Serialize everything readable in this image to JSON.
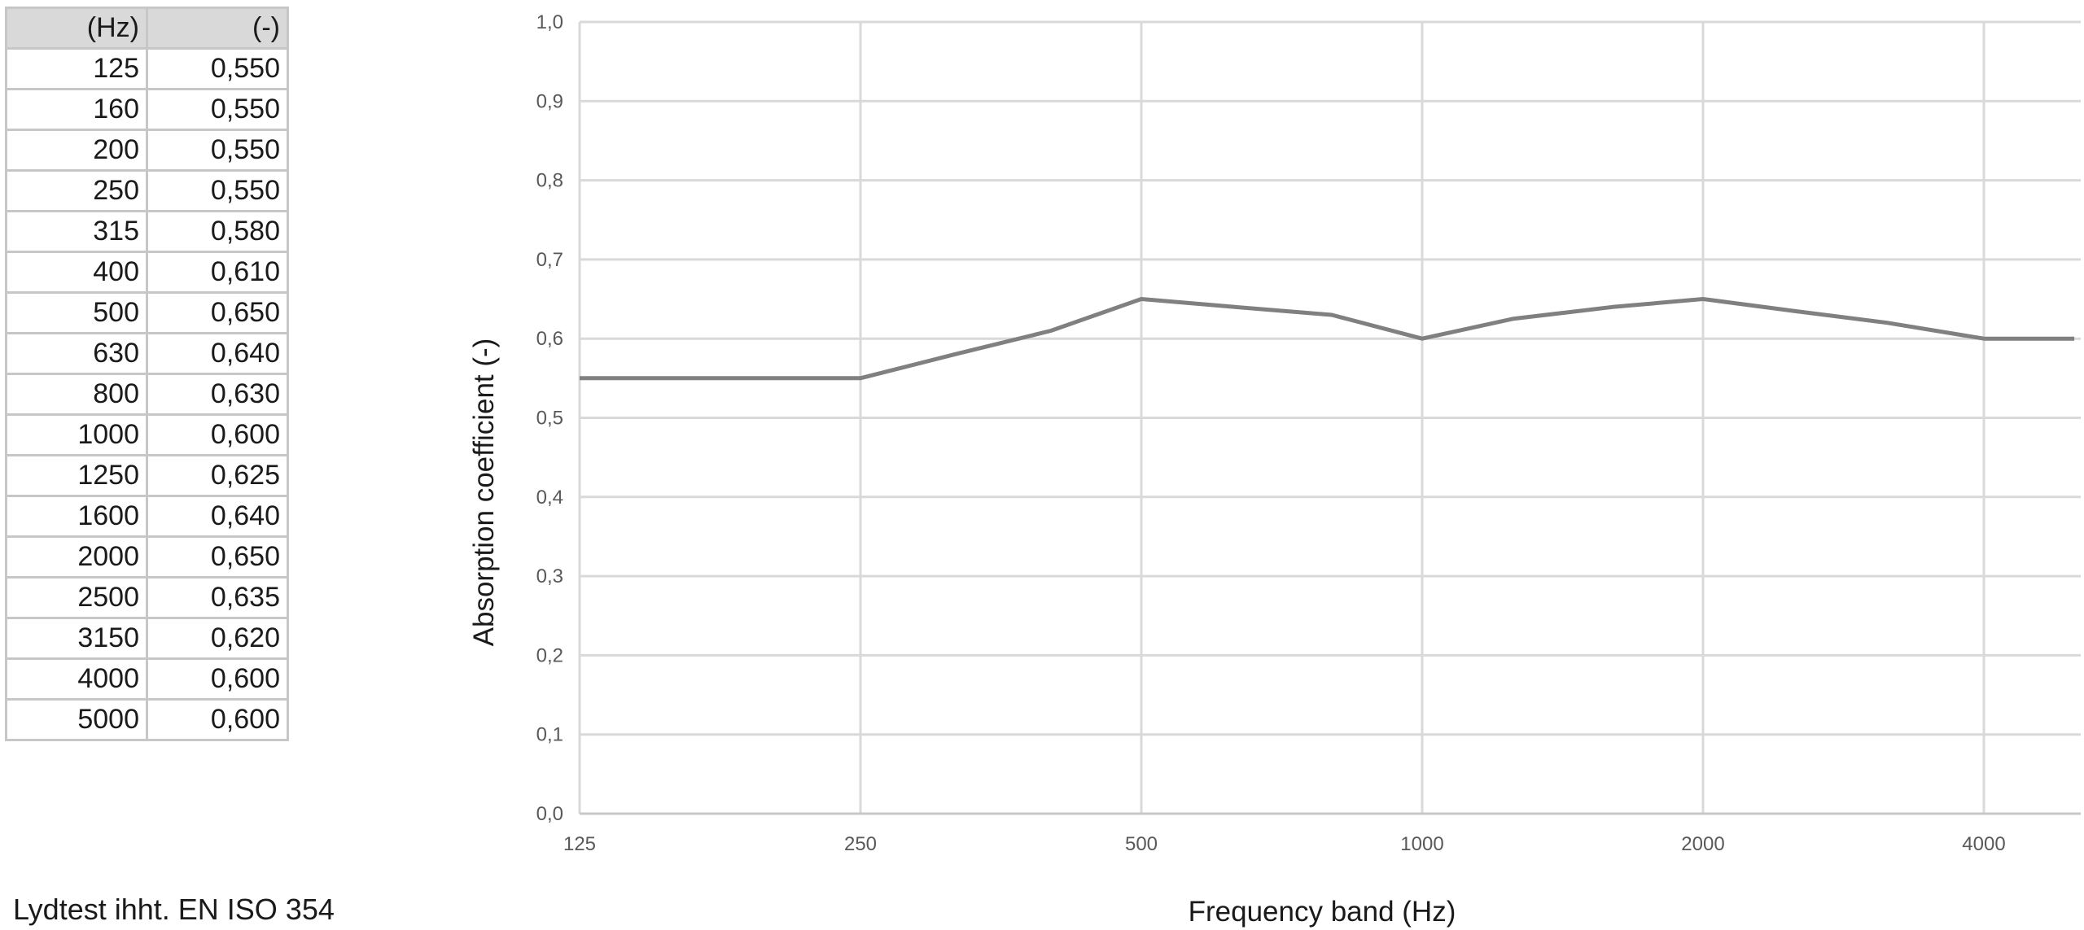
{
  "table": {
    "headers": [
      "(Hz)",
      "(-)"
    ],
    "rows": [
      [
        "125",
        "0,550"
      ],
      [
        "160",
        "0,550"
      ],
      [
        "200",
        "0,550"
      ],
      [
        "250",
        "0,550"
      ],
      [
        "315",
        "0,580"
      ],
      [
        "400",
        "0,610"
      ],
      [
        "500",
        "0,650"
      ],
      [
        "630",
        "0,640"
      ],
      [
        "800",
        "0,630"
      ],
      [
        "1000",
        "0,600"
      ],
      [
        "1250",
        "0,625"
      ],
      [
        "1600",
        "0,640"
      ],
      [
        "2000",
        "0,650"
      ],
      [
        "2500",
        "0,635"
      ],
      [
        "3150",
        "0,620"
      ],
      [
        "4000",
        "0,600"
      ],
      [
        "5000",
        "0,600"
      ]
    ]
  },
  "footnote": "Lydtest ihht.  EN ISO 354",
  "chart_data": {
    "type": "line",
    "x_scale": "log2",
    "x": [
      125,
      160,
      200,
      250,
      315,
      400,
      500,
      630,
      800,
      1000,
      1250,
      1600,
      2000,
      2500,
      3150,
      4000,
      5000
    ],
    "series": [
      {
        "values": [
          0.55,
          0.55,
          0.55,
          0.55,
          0.58,
          0.61,
          0.65,
          0.64,
          0.63,
          0.6,
          0.625,
          0.64,
          0.65,
          0.635,
          0.62,
          0.6,
          0.6
        ]
      }
    ],
    "x_ticks": [
      125,
      250,
      500,
      1000,
      2000,
      4000
    ],
    "x_tick_labels": [
      "125",
      "250",
      "500",
      "1000",
      "2000",
      "4000"
    ],
    "xlim": [
      125,
      5000
    ],
    "y_ticks": [
      0,
      0.1,
      0.2,
      0.3,
      0.4,
      0.5,
      0.6,
      0.7,
      0.8,
      0.9,
      1.0
    ],
    "y_tick_labels": [
      "0,0",
      "0,1",
      "0,2",
      "0,3",
      "0,4",
      "0,5",
      "0,6",
      "0,7",
      "0,8",
      "0,9",
      "1,0"
    ],
    "ylim": [
      0,
      1.0
    ],
    "xlabel": "Frequency band (Hz)",
    "ylabel": "Absorption coefficient (-)",
    "grid": true,
    "line_color": "#808080",
    "grid_color": "#d9d9d9"
  }
}
